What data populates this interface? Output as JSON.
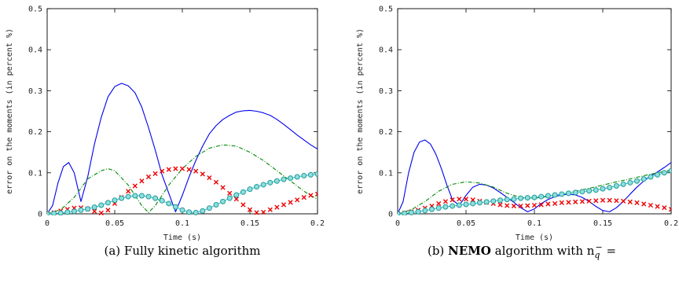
{
  "chart_data": [
    {
      "type": "line",
      "title": "",
      "xlabel": "Time (s)",
      "ylabel": "error on the moments (in percent %)",
      "xlim": [
        0,
        0.2
      ],
      "ylim": [
        0,
        0.5
      ],
      "xticks": [
        "0",
        "0.05",
        "0.1",
        "0.15",
        "0.2"
      ],
      "yticks": [
        "0",
        "0.1",
        "0.2",
        "0.3",
        "0.4",
        "0.5"
      ],
      "caption": "(a) Fully kinetic algorithm",
      "series": [
        {
          "color": "#0000ee",
          "style": "solid",
          "marker": "none",
          "x": [
            0,
            0.004,
            0.008,
            0.012,
            0.016,
            0.02,
            0.025,
            0.03,
            0.035,
            0.04,
            0.045,
            0.05,
            0.055,
            0.06,
            0.065,
            0.07,
            0.075,
            0.08,
            0.085,
            0.09,
            0.095,
            0.1,
            0.105,
            0.11,
            0.115,
            0.12,
            0.125,
            0.13,
            0.135,
            0.14,
            0.145,
            0.15,
            0.155,
            0.16,
            0.165,
            0.17,
            0.175,
            0.18,
            0.185,
            0.19,
            0.195,
            0.2
          ],
          "y": [
            0,
            0.02,
            0.075,
            0.115,
            0.125,
            0.1,
            0.03,
            0.09,
            0.17,
            0.235,
            0.285,
            0.31,
            0.318,
            0.312,
            0.295,
            0.26,
            0.21,
            0.155,
            0.095,
            0.05,
            0.005,
            0.045,
            0.09,
            0.13,
            0.165,
            0.195,
            0.215,
            0.23,
            0.24,
            0.248,
            0.251,
            0.252,
            0.25,
            0.246,
            0.24,
            0.23,
            0.218,
            0.205,
            0.192,
            0.18,
            0.168,
            0.158
          ]
        },
        {
          "color": "#008800",
          "style": "dashdot",
          "marker": "none",
          "x": [
            0,
            0.01,
            0.02,
            0.03,
            0.04,
            0.045,
            0.05,
            0.06,
            0.07,
            0.075,
            0.08,
            0.09,
            0.1,
            0.11,
            0.12,
            0.13,
            0.14,
            0.15,
            0.16,
            0.17,
            0.18,
            0.19,
            0.2
          ],
          "y": [
            0,
            0.01,
            0.04,
            0.085,
            0.105,
            0.11,
            0.105,
            0.07,
            0.02,
            0.003,
            0.02,
            0.07,
            0.11,
            0.14,
            0.16,
            0.168,
            0.165,
            0.15,
            0.13,
            0.105,
            0.08,
            0.055,
            0.035
          ]
        },
        {
          "color": "#ee0000",
          "style": "none",
          "marker": "x",
          "x": [
            0,
            0.005,
            0.01,
            0.015,
            0.02,
            0.025,
            0.03,
            0.035,
            0.04,
            0.045,
            0.05,
            0.055,
            0.06,
            0.065,
            0.07,
            0.075,
            0.08,
            0.085,
            0.09,
            0.095,
            0.1,
            0.105,
            0.11,
            0.115,
            0.12,
            0.125,
            0.13,
            0.135,
            0.14,
            0.145,
            0.15,
            0.155,
            0.16,
            0.165,
            0.17,
            0.175,
            0.18,
            0.185,
            0.19,
            0.195,
            0.2
          ],
          "y": [
            0,
            0.003,
            0.007,
            0.011,
            0.014,
            0.015,
            0.012,
            0.006,
            0.002,
            0.009,
            0.025,
            0.04,
            0.055,
            0.068,
            0.08,
            0.09,
            0.098,
            0.104,
            0.108,
            0.11,
            0.11,
            0.108,
            0.104,
            0.097,
            0.088,
            0.077,
            0.064,
            0.05,
            0.036,
            0.022,
            0.01,
            0.003,
            0.004,
            0.01,
            0.016,
            0.022,
            0.028,
            0.034,
            0.04,
            0.045,
            0.048
          ]
        },
        {
          "color": "#33cccc",
          "style": "solid",
          "marker": "o",
          "x": [
            0,
            0.005,
            0.01,
            0.015,
            0.02,
            0.025,
            0.03,
            0.035,
            0.04,
            0.045,
            0.05,
            0.055,
            0.06,
            0.065,
            0.07,
            0.075,
            0.08,
            0.085,
            0.09,
            0.095,
            0.1,
            0.105,
            0.11,
            0.115,
            0.12,
            0.125,
            0.13,
            0.135,
            0.14,
            0.145,
            0.15,
            0.155,
            0.16,
            0.165,
            0.17,
            0.175,
            0.18,
            0.185,
            0.19,
            0.195,
            0.2
          ],
          "y": [
            0,
            0.001,
            0.002,
            0.004,
            0.006,
            0.009,
            0.012,
            0.016,
            0.021,
            0.027,
            0.033,
            0.038,
            0.042,
            0.044,
            0.044,
            0.042,
            0.038,
            0.032,
            0.025,
            0.017,
            0.009,
            0.004,
            0.003,
            0.007,
            0.014,
            0.022,
            0.03,
            0.038,
            0.046,
            0.053,
            0.06,
            0.066,
            0.071,
            0.076,
            0.08,
            0.084,
            0.087,
            0.09,
            0.093,
            0.095,
            0.097
          ]
        }
      ]
    },
    {
      "type": "line",
      "title": "",
      "xlabel": "Time (s)",
      "ylabel": "error on the moments (in percent %)",
      "xlim": [
        0,
        0.2
      ],
      "ylim": [
        0,
        0.5
      ],
      "xticks": [
        "0",
        "0.05",
        "0.1",
        "0.15",
        "0.2"
      ],
      "yticks": [
        "0",
        "0.1",
        "0.2",
        "0.3",
        "0.4",
        "0.5"
      ],
      "caption_prefix": "(b) ",
      "caption_bold": "NEMO",
      "caption_suffix": " algorithm with n",
      "caption_sub": "q",
      "caption_sup": "−",
      "caption_end": " =",
      "series": [
        {
          "color": "#0000ee",
          "style": "solid",
          "marker": "none",
          "x": [
            0,
            0.004,
            0.008,
            0.012,
            0.016,
            0.02,
            0.024,
            0.028,
            0.032,
            0.036,
            0.04,
            0.045,
            0.05,
            0.055,
            0.06,
            0.065,
            0.07,
            0.075,
            0.08,
            0.085,
            0.09,
            0.095,
            0.1,
            0.105,
            0.11,
            0.115,
            0.12,
            0.125,
            0.13,
            0.135,
            0.14,
            0.145,
            0.15,
            0.155,
            0.16,
            0.165,
            0.17,
            0.175,
            0.18,
            0.185,
            0.19,
            0.195,
            0.2
          ],
          "y": [
            0,
            0.03,
            0.1,
            0.15,
            0.175,
            0.18,
            0.17,
            0.145,
            0.11,
            0.07,
            0.035,
            0.02,
            0.045,
            0.065,
            0.072,
            0.07,
            0.063,
            0.052,
            0.04,
            0.028,
            0.015,
            0.005,
            0.012,
            0.025,
            0.035,
            0.042,
            0.046,
            0.048,
            0.046,
            0.04,
            0.03,
            0.018,
            0.008,
            0.005,
            0.015,
            0.03,
            0.048,
            0.065,
            0.08,
            0.092,
            0.102,
            0.113,
            0.125
          ]
        },
        {
          "color": "#008800",
          "style": "dashdot",
          "marker": "none",
          "x": [
            0,
            0.01,
            0.02,
            0.03,
            0.04,
            0.05,
            0.06,
            0.07,
            0.08,
            0.09,
            0.1,
            0.11,
            0.12,
            0.13,
            0.14,
            0.15,
            0.16,
            0.17,
            0.18,
            0.19,
            0.2
          ],
          "y": [
            0,
            0.01,
            0.03,
            0.055,
            0.072,
            0.078,
            0.075,
            0.065,
            0.05,
            0.04,
            0.038,
            0.042,
            0.048,
            0.055,
            0.062,
            0.07,
            0.078,
            0.085,
            0.093,
            0.1,
            0.107
          ]
        },
        {
          "color": "#ee0000",
          "style": "none",
          "marker": "x",
          "x": [
            0,
            0.005,
            0.01,
            0.015,
            0.02,
            0.025,
            0.03,
            0.035,
            0.04,
            0.045,
            0.05,
            0.055,
            0.06,
            0.065,
            0.07,
            0.075,
            0.08,
            0.085,
            0.09,
            0.095,
            0.1,
            0.105,
            0.11,
            0.115,
            0.12,
            0.125,
            0.13,
            0.135,
            0.14,
            0.145,
            0.15,
            0.155,
            0.16,
            0.165,
            0.17,
            0.175,
            0.18,
            0.185,
            0.19,
            0.195,
            0.2
          ],
          "y": [
            0,
            0.002,
            0.005,
            0.009,
            0.014,
            0.019,
            0.025,
            0.03,
            0.034,
            0.036,
            0.036,
            0.034,
            0.031,
            0.028,
            0.025,
            0.022,
            0.02,
            0.019,
            0.019,
            0.02,
            0.021,
            0.022,
            0.024,
            0.025,
            0.027,
            0.028,
            0.029,
            0.03,
            0.031,
            0.032,
            0.033,
            0.033,
            0.032,
            0.031,
            0.029,
            0.027,
            0.024,
            0.021,
            0.018,
            0.015,
            0.011
          ]
        },
        {
          "color": "#33cccc",
          "style": "solid",
          "marker": "o",
          "x": [
            0,
            0.005,
            0.01,
            0.015,
            0.02,
            0.025,
            0.03,
            0.035,
            0.04,
            0.045,
            0.05,
            0.055,
            0.06,
            0.065,
            0.07,
            0.075,
            0.08,
            0.085,
            0.09,
            0.095,
            0.1,
            0.105,
            0.11,
            0.115,
            0.12,
            0.125,
            0.13,
            0.135,
            0.14,
            0.145,
            0.15,
            0.155,
            0.16,
            0.165,
            0.17,
            0.175,
            0.18,
            0.185,
            0.19,
            0.195,
            0.2
          ],
          "y": [
            0,
            0.001,
            0.003,
            0.005,
            0.008,
            0.011,
            0.014,
            0.017,
            0.019,
            0.021,
            0.023,
            0.025,
            0.027,
            0.029,
            0.031,
            0.033,
            0.035,
            0.036,
            0.038,
            0.039,
            0.04,
            0.042,
            0.044,
            0.046,
            0.048,
            0.05,
            0.052,
            0.054,
            0.056,
            0.058,
            0.061,
            0.064,
            0.068,
            0.072,
            0.076,
            0.08,
            0.085,
            0.09,
            0.095,
            0.1,
            0.105
          ]
        }
      ]
    }
  ]
}
